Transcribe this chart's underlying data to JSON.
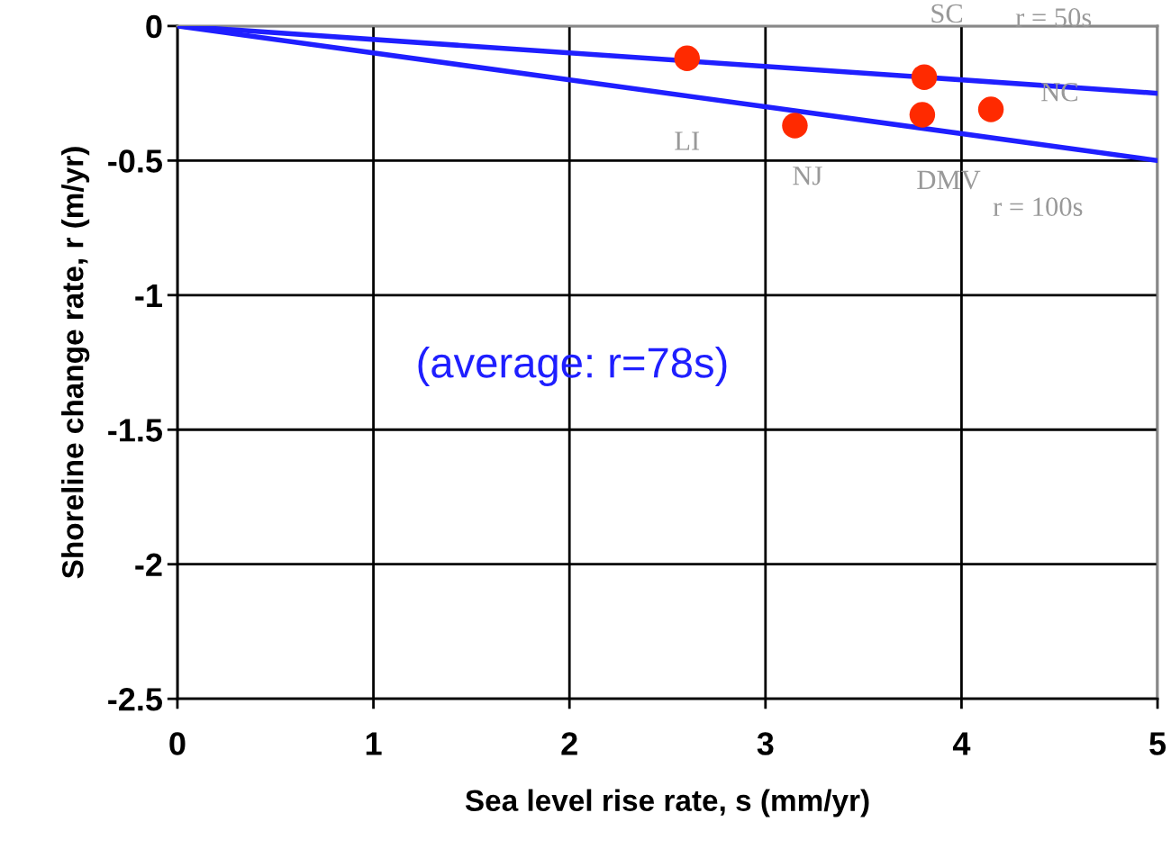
{
  "chart_data": {
    "type": "scatter",
    "xlabel": "Sea level rise rate, s (mm/yr)",
    "ylabel": "Shoreline change rate, r (m/yr)",
    "xlim": [
      0,
      5
    ],
    "ylim": [
      -2.5,
      0
    ],
    "xticks": [
      0,
      1,
      2,
      3,
      4,
      5
    ],
    "yticks": [
      0,
      -0.5,
      -1,
      -1.5,
      -2,
      -2.5
    ],
    "grid": true,
    "series": [
      {
        "type": "line",
        "color": "#1f1fff",
        "x": [
          0,
          5
        ],
        "values": [
          0,
          -0.25
        ],
        "marker": "none"
      },
      {
        "type": "line",
        "color": "#1f1fff",
        "x": [
          0,
          5
        ],
        "values": [
          0,
          -0.5
        ],
        "marker": "none"
      },
      {
        "color": "#ff2a00",
        "x": [
          2.6,
          3.15,
          3.81,
          3.8,
          4.15
        ],
        "values": [
          -0.12,
          -0.37,
          -0.19,
          -0.33,
          -0.31
        ],
        "marker": "circle"
      }
    ],
    "annotations": [
      {
        "text": "LI",
        "x": 2.6,
        "y": -0.12
      },
      {
        "text": "NJ",
        "x": 3.15,
        "y": -0.37
      },
      {
        "text": "SC",
        "x": 3.81,
        "y": -0.19
      },
      {
        "text": "DMV",
        "x": 3.8,
        "y": -0.33
      },
      {
        "text": "NC",
        "x": 4.15,
        "y": -0.31
      },
      {
        "text": "r = 50s",
        "x": 4.47,
        "y": -0.2235
      },
      {
        "text": "r = 100s",
        "x": 4.39,
        "y": -0.439
      },
      "(average: r=78s)"
    ]
  }
}
